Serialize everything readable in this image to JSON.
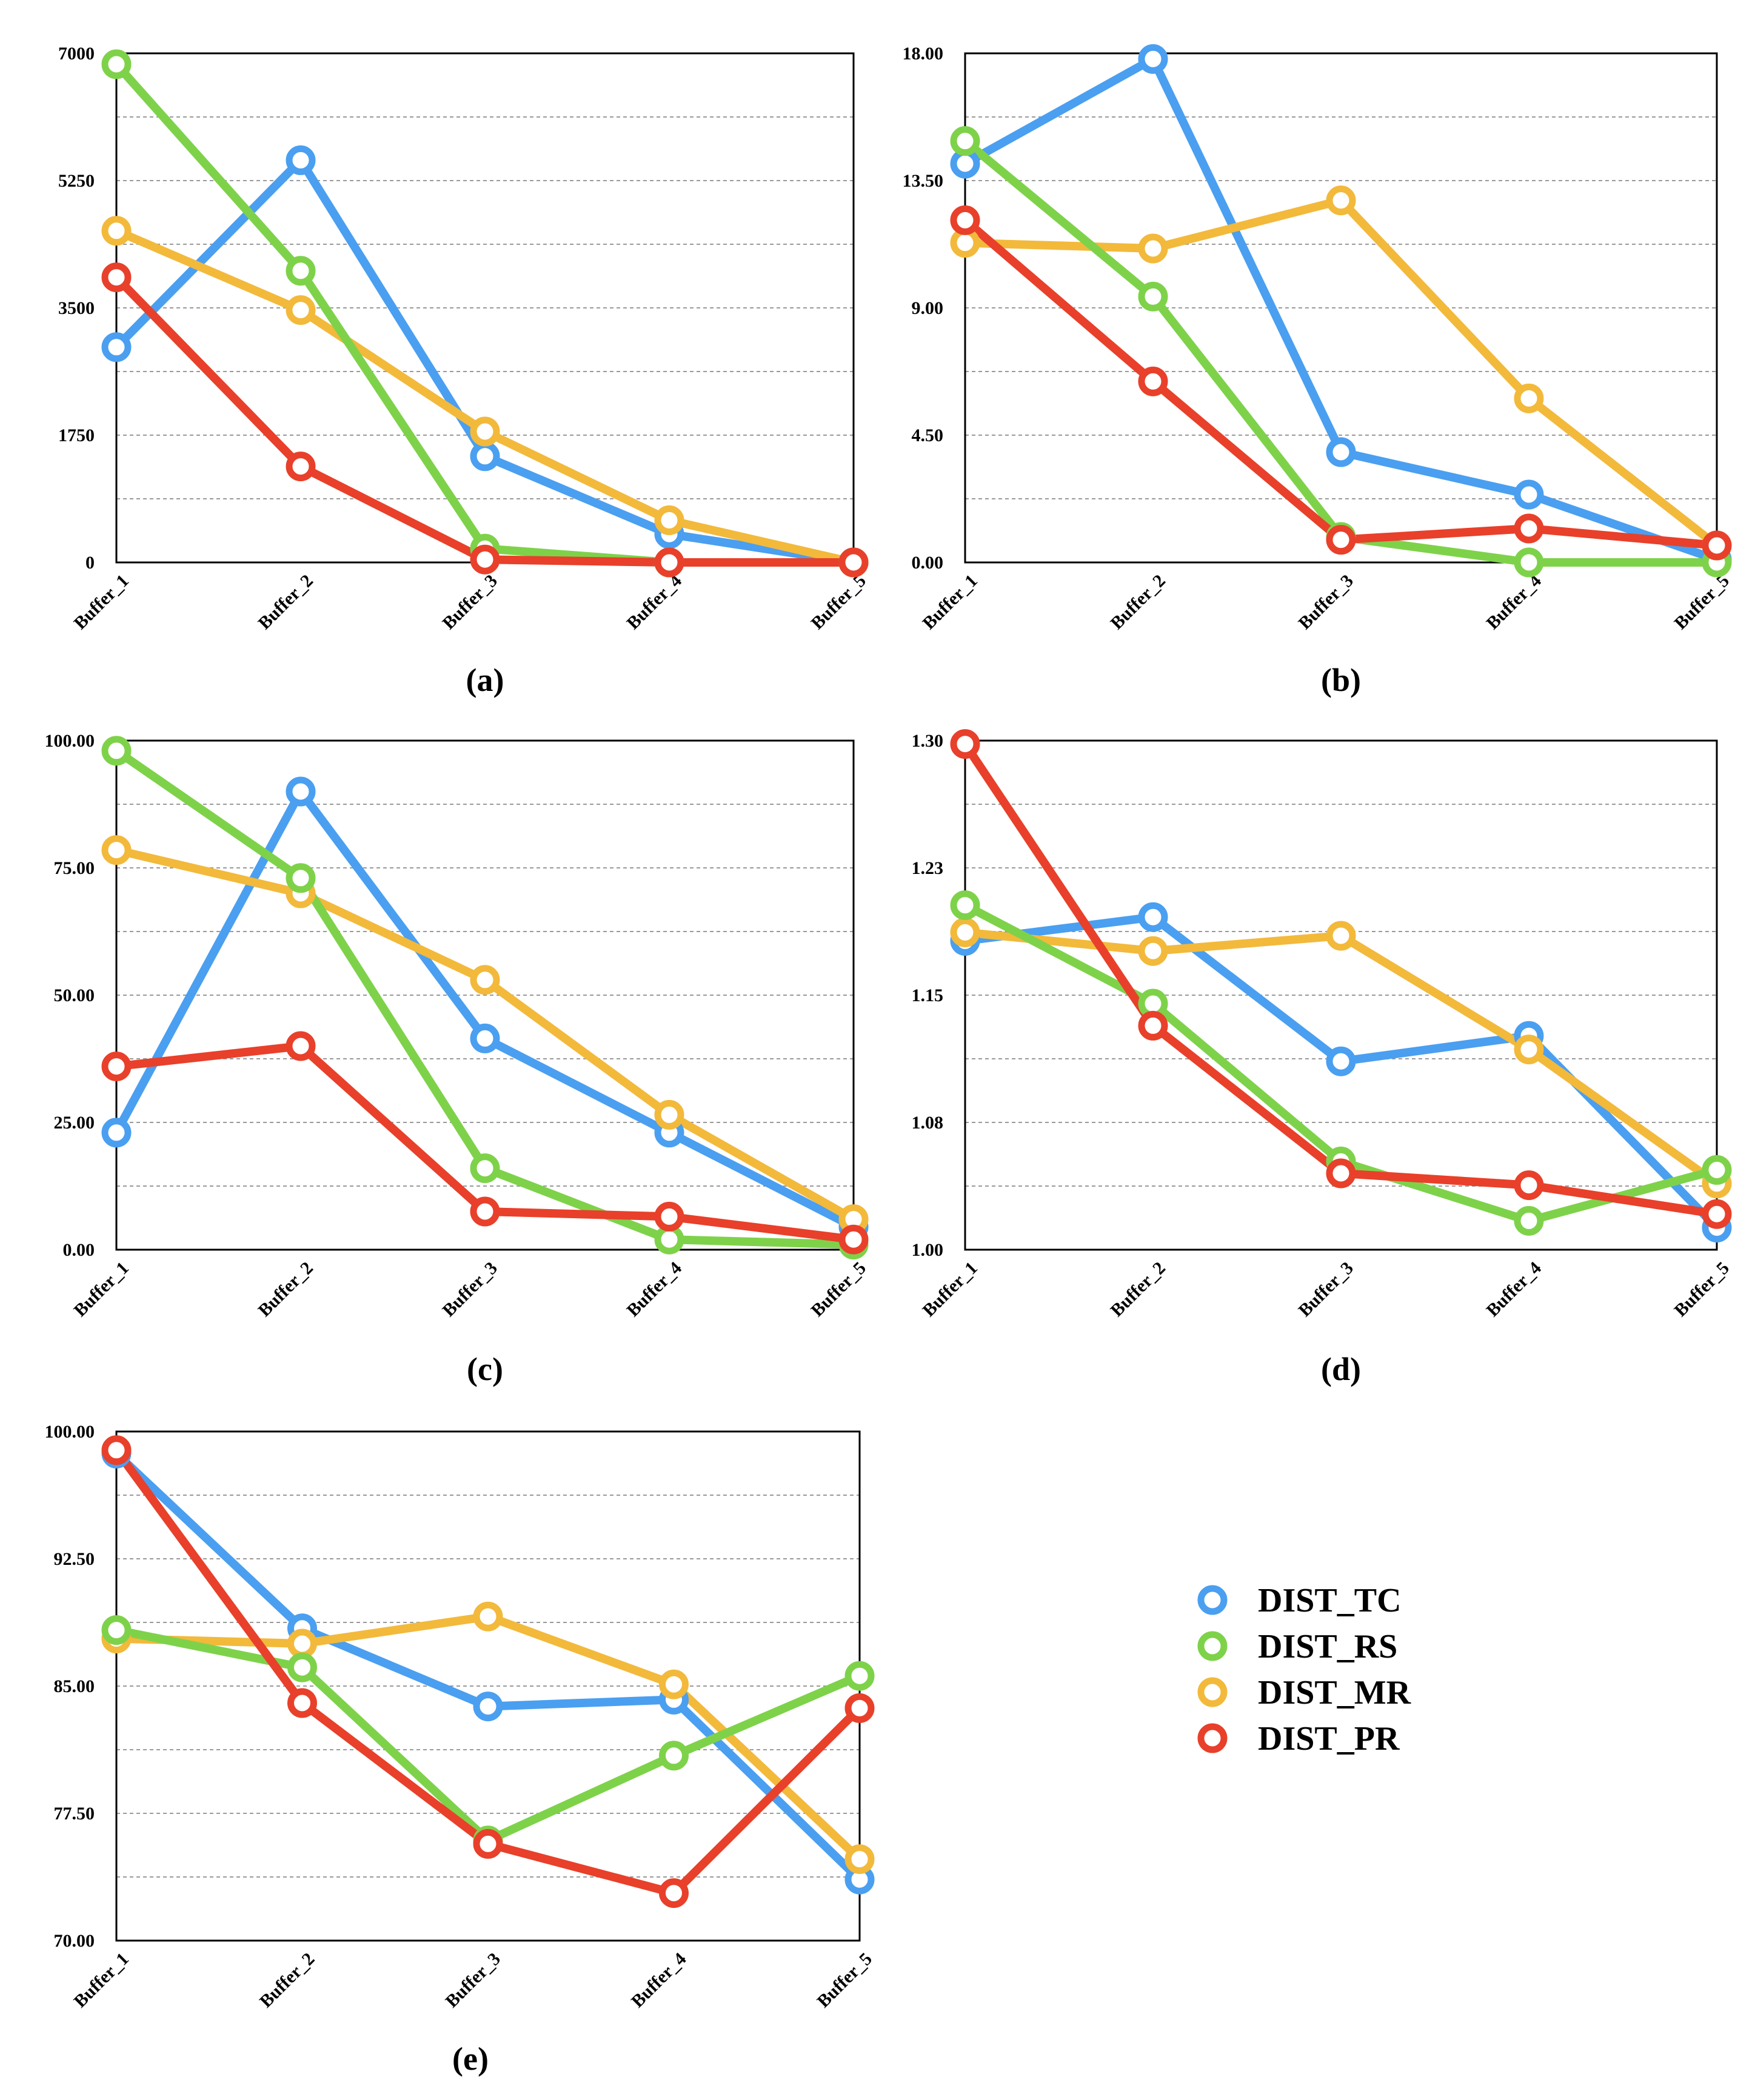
{
  "colors": {
    "DIST_TC": "#4a9ff0",
    "DIST_RS": "#7ed24a",
    "DIST_MR": "#f2b93b",
    "DIST_PR": "#e8402a"
  },
  "legend": [
    "DIST_TC",
    "DIST_RS",
    "DIST_MR",
    "DIST_PR"
  ],
  "chart_data": [
    {
      "type": "line",
      "label": "(a)",
      "categories": [
        "Buffer_1",
        "Buffer_2",
        "Buffer_3",
        "Buffer_4",
        "Buffer_5"
      ],
      "ylim": [
        0,
        7000
      ],
      "yticks": [
        "0",
        "1750",
        "3500",
        "5250",
        "7000"
      ],
      "grid": true,
      "series": [
        {
          "name": "DIST_TC",
          "values": [
            2960,
            5530,
            1460,
            390,
            0
          ]
        },
        {
          "name": "DIST_RS",
          "values": [
            6850,
            4010,
            190,
            0,
            0
          ]
        },
        {
          "name": "DIST_MR",
          "values": [
            4560,
            3470,
            1800,
            580,
            0
          ]
        },
        {
          "name": "DIST_PR",
          "values": [
            3920,
            1320,
            40,
            0,
            0
          ]
        }
      ]
    },
    {
      "type": "line",
      "label": "(b)",
      "categories": [
        "Buffer_1",
        "Buffer_2",
        "Buffer_3",
        "Buffer_4",
        "Buffer_5"
      ],
      "ylim": [
        0,
        18
      ],
      "yticks": [
        "0.00",
        "4.50",
        "9.00",
        "13.50",
        "18.00"
      ],
      "grid": true,
      "series": [
        {
          "name": "DIST_TC",
          "values": [
            14.1,
            17.8,
            3.9,
            2.4,
            0.1
          ]
        },
        {
          "name": "DIST_RS",
          "values": [
            14.9,
            9.4,
            0.9,
            0.0,
            0.0
          ]
        },
        {
          "name": "DIST_MR",
          "values": [
            11.3,
            11.1,
            12.8,
            5.8,
            0.6
          ]
        },
        {
          "name": "DIST_PR",
          "values": [
            12.1,
            6.4,
            0.8,
            1.2,
            0.6
          ]
        }
      ]
    },
    {
      "type": "line",
      "label": "(c)",
      "categories": [
        "Buffer_1",
        "Buffer_2",
        "Buffer_3",
        "Buffer_4",
        "Buffer_5"
      ],
      "ylim": [
        0,
        100
      ],
      "yticks": [
        "0.00",
        "25.00",
        "50.00",
        "75.00",
        "100.00"
      ],
      "grid": true,
      "series": [
        {
          "name": "DIST_TC",
          "values": [
            23,
            90,
            41.5,
            23,
            4.5
          ]
        },
        {
          "name": "DIST_RS",
          "values": [
            98,
            73,
            16,
            2,
            1
          ]
        },
        {
          "name": "DIST_MR",
          "values": [
            78.5,
            70,
            53,
            26.5,
            6
          ]
        },
        {
          "name": "DIST_PR",
          "values": [
            36,
            40,
            7.5,
            6.5,
            2
          ]
        }
      ]
    },
    {
      "type": "line",
      "label": "(d)",
      "categories": [
        "Buffer_1",
        "Buffer_2",
        "Buffer_3",
        "Buffer_4",
        "Buffer_5"
      ],
      "ylim": [
        1.0,
        1.3
      ],
      "yticks": [
        "1.00",
        "1.08",
        "1.15",
        "1.23",
        "1.30"
      ],
      "grid": true,
      "series": [
        {
          "name": "DIST_TC",
          "values": [
            1.182,
            1.196,
            1.111,
            1.126,
            1.013
          ]
        },
        {
          "name": "DIST_RS",
          "values": [
            1.203,
            1.145,
            1.052,
            1.017,
            1.047
          ]
        },
        {
          "name": "DIST_MR",
          "values": [
            1.187,
            1.176,
            1.185,
            1.118,
            1.039
          ]
        },
        {
          "name": "DIST_PR",
          "values": [
            1.298,
            1.132,
            1.045,
            1.038,
            1.021
          ]
        }
      ]
    },
    {
      "type": "line",
      "label": "(e)",
      "categories": [
        "Buffer_1",
        "Buffer_2",
        "Buffer_3",
        "Buffer_4",
        "Buffer_5"
      ],
      "ylim": [
        70,
        100
      ],
      "yticks": [
        "70.00",
        "77.50",
        "85.00",
        "92.50",
        "100.00"
      ],
      "grid": true,
      "series": [
        {
          "name": "DIST_TC",
          "values": [
            98.7,
            88.4,
            83.8,
            84.2,
            73.6
          ]
        },
        {
          "name": "DIST_RS",
          "values": [
            88.3,
            86.1,
            75.9,
            80.9,
            85.6
          ]
        },
        {
          "name": "DIST_MR",
          "values": [
            87.8,
            87.5,
            89.1,
            85.1,
            74.8
          ]
        },
        {
          "name": "DIST_PR",
          "values": [
            98.9,
            84.0,
            75.7,
            72.8,
            83.7
          ]
        }
      ]
    }
  ]
}
